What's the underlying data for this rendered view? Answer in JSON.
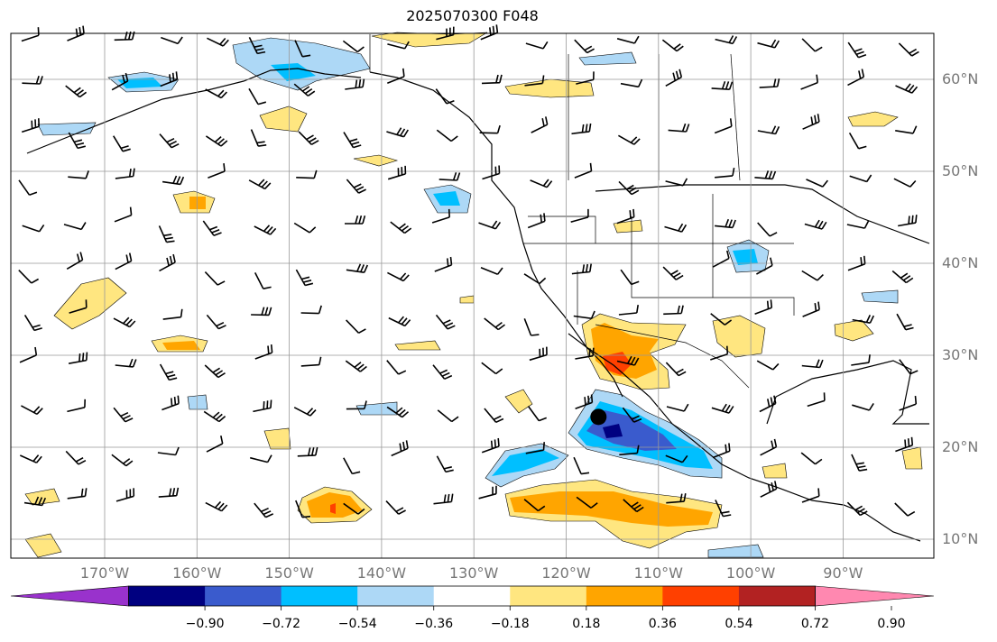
{
  "title": "2025070300 F048",
  "map": {
    "lat_labels": [
      "60°N",
      "50°N",
      "40°N",
      "30°N",
      "20°N",
      "10°N"
    ],
    "lat_values": [
      60,
      50,
      40,
      30,
      20,
      10
    ],
    "lon_labels": [
      "170°W",
      "160°W",
      "150°W",
      "140°W",
      "130°W",
      "120°W",
      "110°W",
      "100°W",
      "90°W"
    ],
    "lon_values": [
      -170,
      -160,
      -150,
      -140,
      -130,
      -120,
      -110,
      -100,
      -90
    ],
    "extent": {
      "lon_min": -180,
      "lon_max": -80,
      "lat_min": 8,
      "lat_max": 65
    },
    "grid": true,
    "marker": {
      "lon": -116.5,
      "lat": 23.3,
      "label": ""
    }
  },
  "colorbar": {
    "tick_labels": [
      "−0.90",
      "−0.72",
      "−0.54",
      "−0.36",
      "−0.18",
      "0.18",
      "0.36",
      "0.54",
      "0.72",
      "0.90"
    ],
    "tick_values": [
      -0.9,
      -0.72,
      -0.54,
      -0.36,
      -0.18,
      0.18,
      0.36,
      0.54,
      0.72,
      0.9
    ],
    "colors": [
      "#9932cc",
      "#000080",
      "#3a5bcd",
      "#00bfff",
      "#add8f6",
      "#ffffff",
      "#ffe680",
      "#ffa500",
      "#ff4000",
      "#b22222",
      "#ff88b0"
    ],
    "extend": "both"
  }
}
